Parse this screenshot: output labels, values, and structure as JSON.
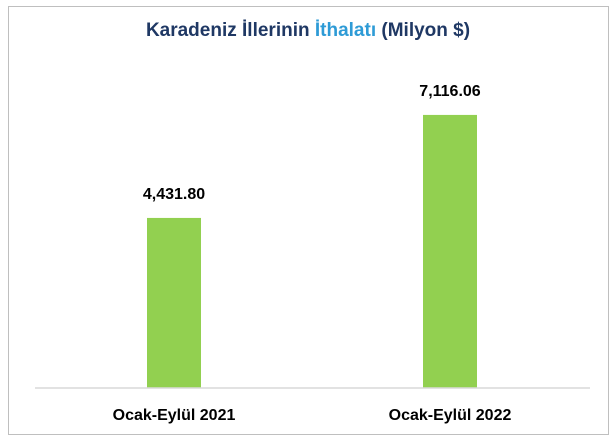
{
  "chart_data": {
    "type": "bar",
    "title_parts": [
      "Karadeniz İllerinin",
      "İthalatı",
      "(Milyon $)"
    ],
    "title_colors": [
      "#1f3864",
      "#2e9bd6",
      "#1f3864"
    ],
    "categories": [
      "Ocak-Eylül 2021",
      "Ocak-Eylül 2022"
    ],
    "values": [
      4431.8,
      7116.06
    ],
    "value_labels": [
      "4,431.80",
      "7,116.06"
    ],
    "color": "#92d050",
    "ylim": [
      0,
      8000
    ]
  }
}
